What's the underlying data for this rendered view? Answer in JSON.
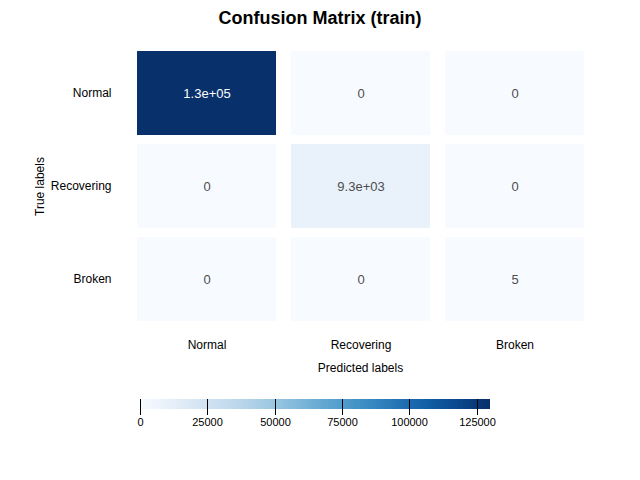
{
  "chart_data": {
    "type": "heatmap",
    "title": "Confusion Matrix (train)",
    "categories": [
      "Normal",
      "Recovering",
      "Broken"
    ],
    "xlabel": "Predicted labels",
    "ylabel": "True labels",
    "values": [
      [
        130000,
        0,
        0
      ],
      [
        0,
        9300,
        0
      ],
      [
        0,
        0,
        5
      ]
    ],
    "value_labels": [
      [
        "1.3e+05",
        "0",
        "0"
      ],
      [
        "0",
        "9.3e+03",
        "0"
      ],
      [
        "0",
        "0",
        "5"
      ]
    ],
    "data_labels": true,
    "color": "Blues",
    "colorbar_lim": [
      0,
      130000
    ],
    "colorbar_ticks": [
      0,
      25000,
      50000,
      75000,
      100000,
      125000
    ]
  }
}
